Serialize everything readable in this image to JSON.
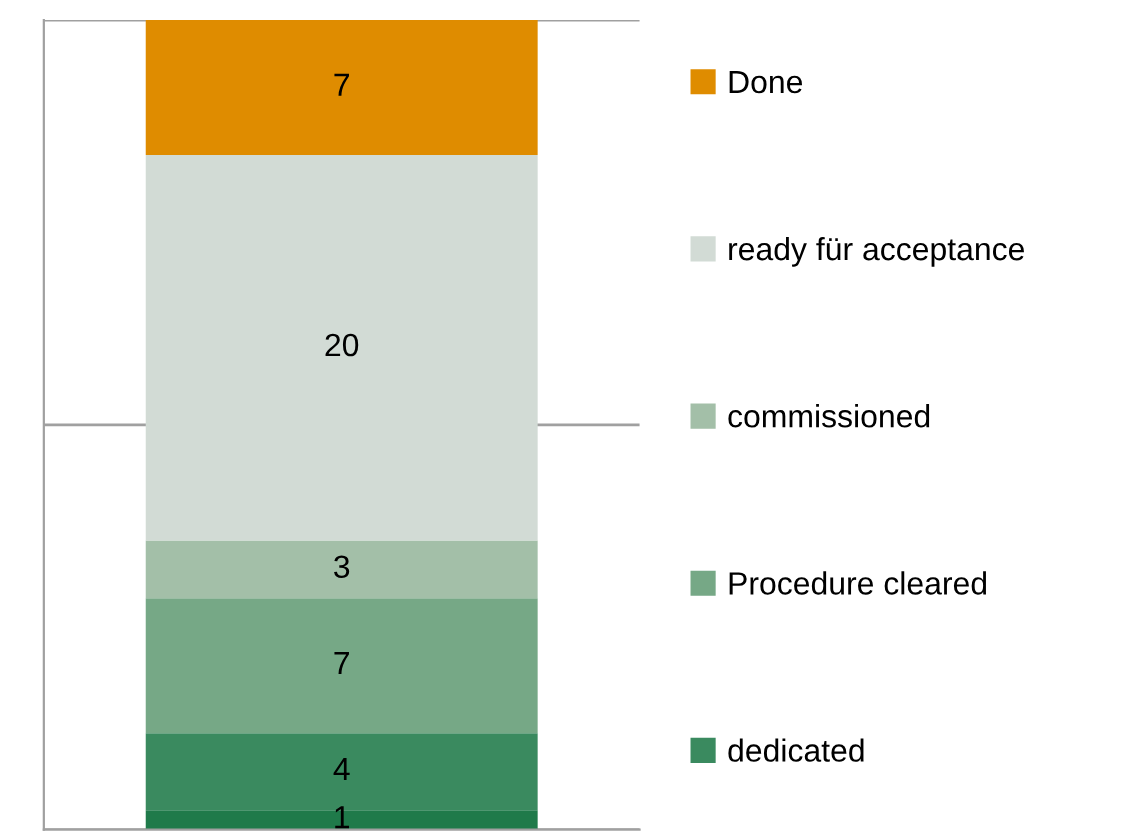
{
  "chart_data": {
    "type": "bar",
    "stacked": true,
    "categories": [
      null
    ],
    "series": [
      {
        "color": "#1f7a4a",
        "values": [
          1
        ]
      },
      {
        "name": "dedicated",
        "color": "#3a8a5f",
        "values": [
          4
        ]
      },
      {
        "name": "Procedure cleared",
        "color": "#76a886",
        "values": [
          7
        ]
      },
      {
        "name": "commissioned",
        "color": "#a3bfa8",
        "values": [
          3
        ]
      },
      {
        "name": "ready für acceptance",
        "color": "#d2dbd5",
        "values": [
          20
        ]
      },
      {
        "name": "Done",
        "color": "#df8c00",
        "values": [
          7
        ]
      }
    ],
    "ylim": [
      0,
      42
    ],
    "yticks": [
      {
        "value": 0,
        "label": null
      },
      {
        "value": 21,
        "label": null
      },
      {
        "value": 42,
        "label": null
      }
    ],
    "grid": "y",
    "data_labels": true,
    "legend": "right"
  }
}
